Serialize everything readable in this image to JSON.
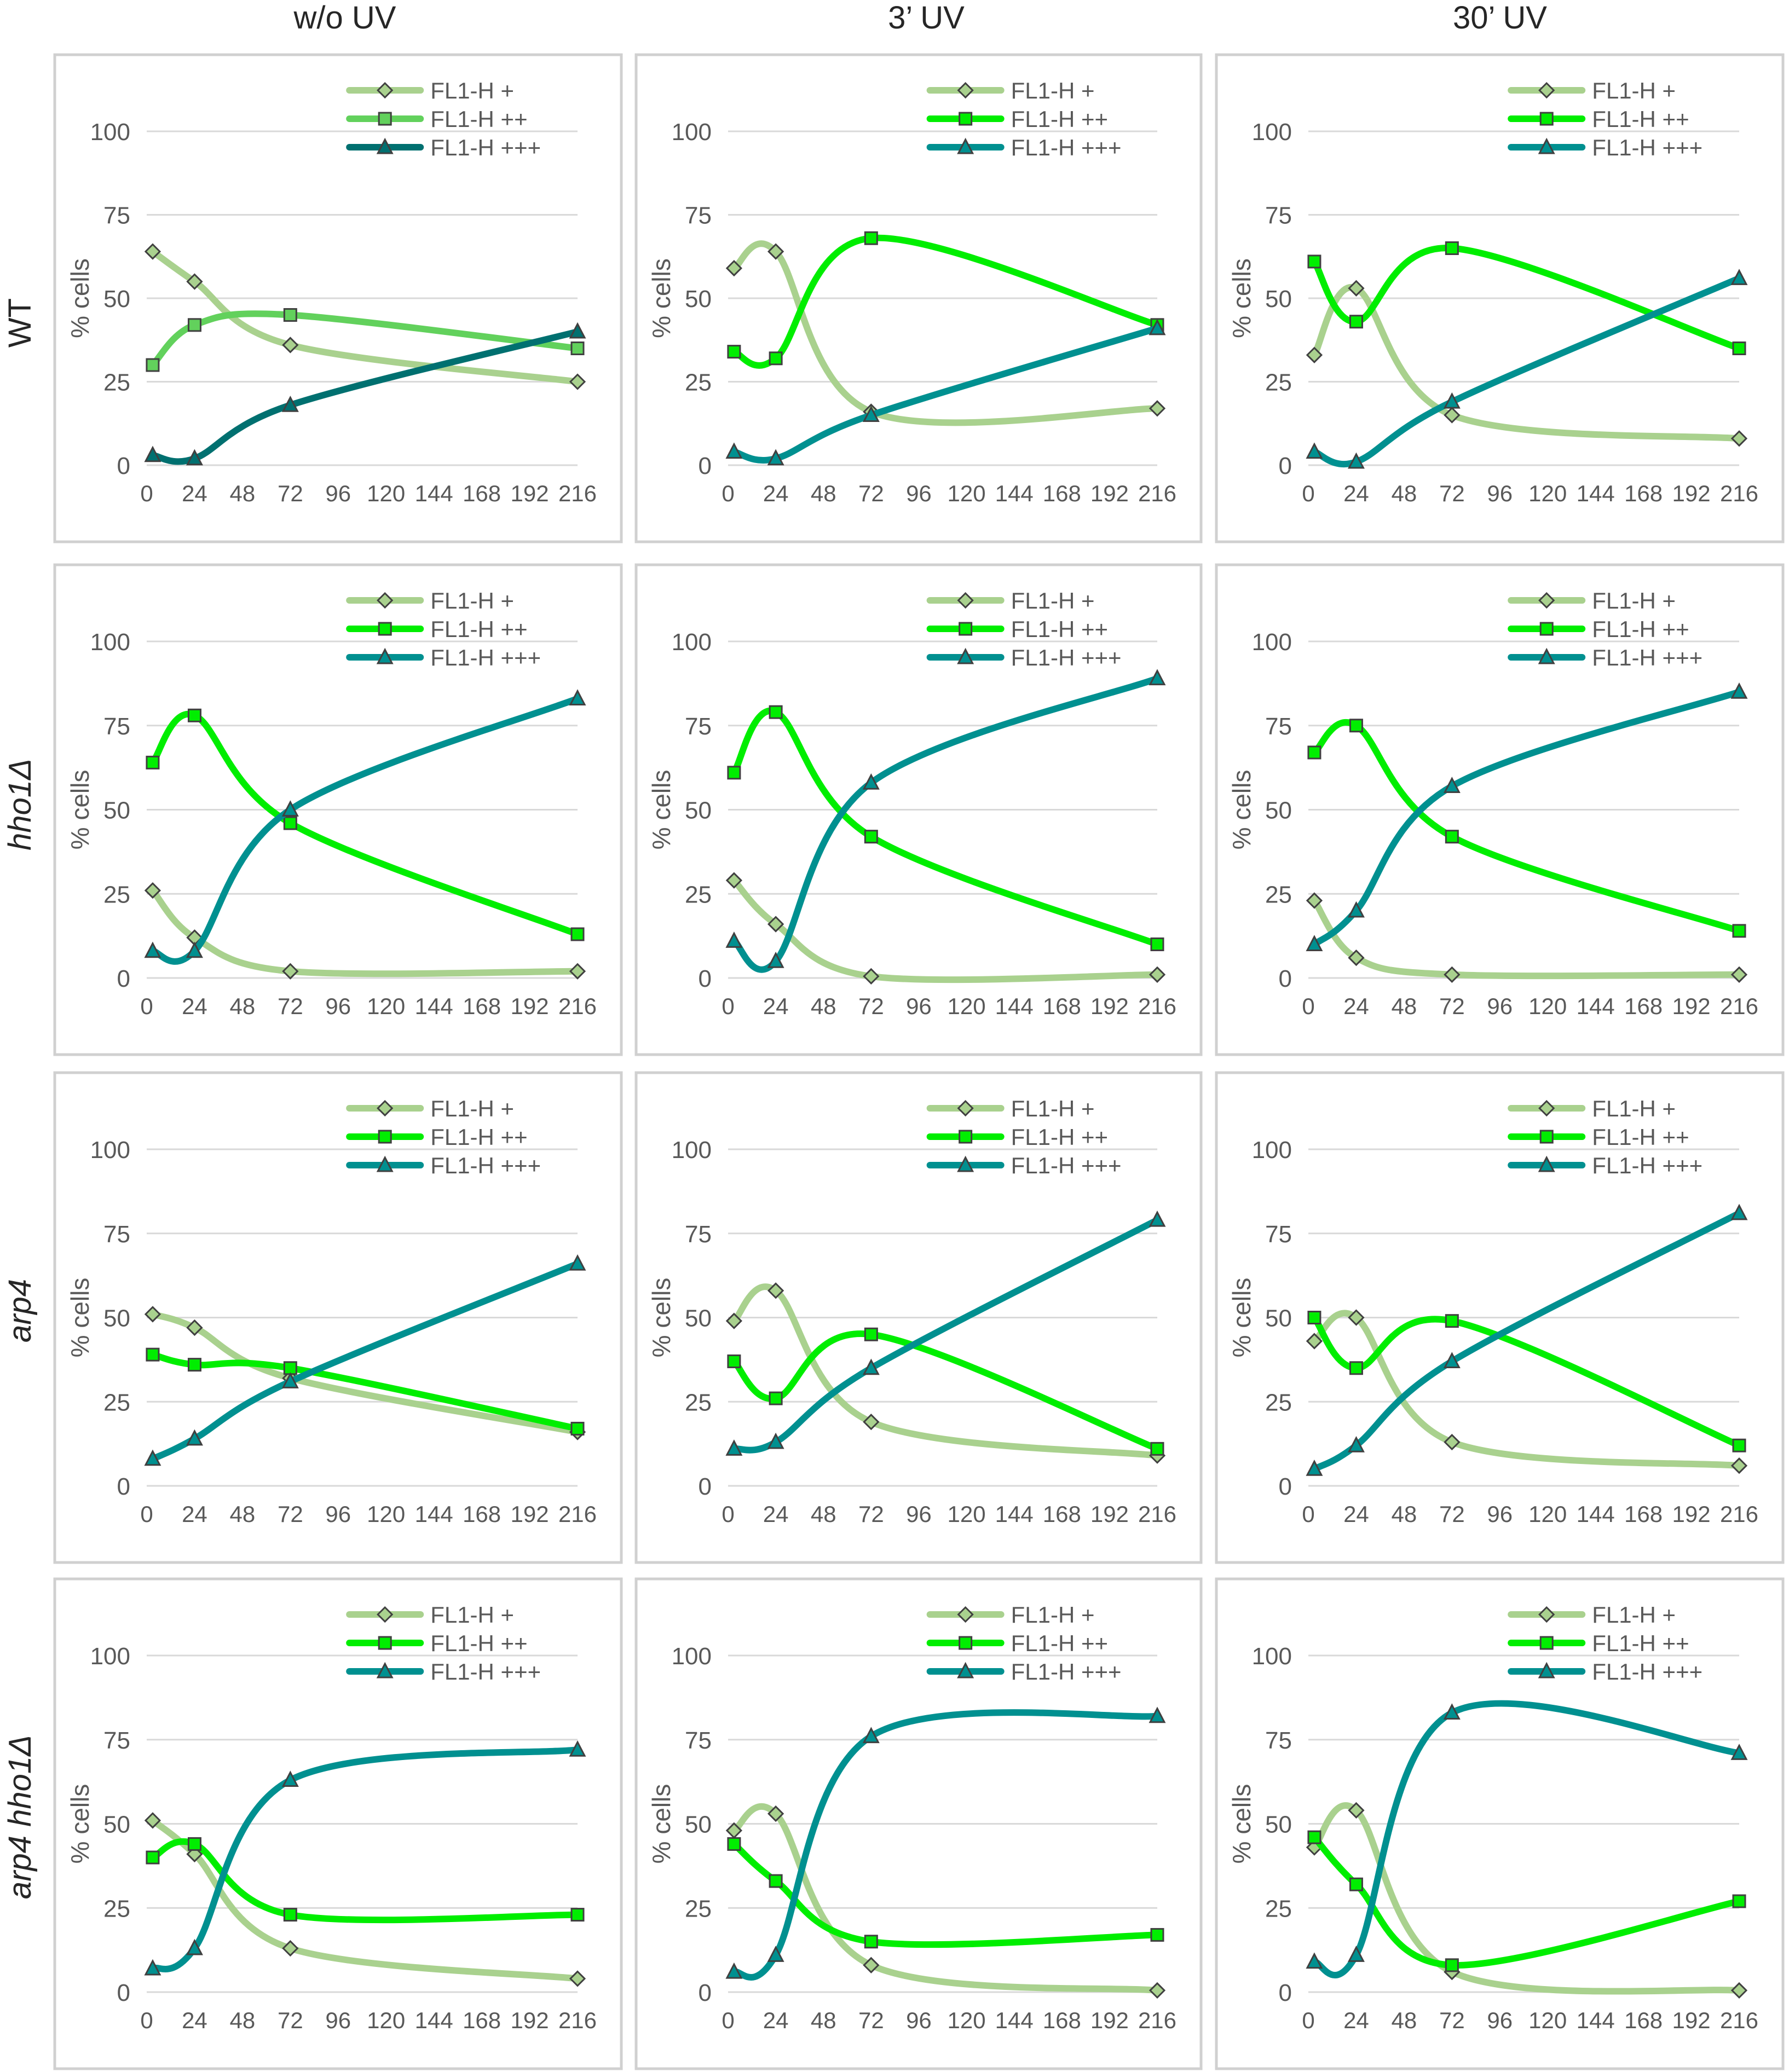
{
  "column_headers": [
    "w/o UV",
    "3’ UV",
    "30’ UV"
  ],
  "row_headers": [
    "WT",
    "hho1Δ",
    "arp4",
    "arp4 hho1Δ"
  ],
  "colors": {
    "FL1-H +": "#a9d18e",
    "FL1-H ++": "#00ee00",
    "FL1-H ++ (w/o UV, WT)": "#62d15c",
    "FL1-H +++ (w/o UV, WT)": "#007070",
    "FL1-H +++": "#009090"
  },
  "chart_data": [
    {
      "type": "line",
      "row": "WT",
      "column": "w/o UV",
      "ylabel": "% cells",
      "xlabel": "",
      "x_ticks": [
        0,
        24,
        48,
        72,
        96,
        120,
        144,
        168,
        192,
        216
      ],
      "y_ticks": [
        0,
        25,
        50,
        75,
        100
      ],
      "xlim": [
        0,
        216
      ],
      "ylim": [
        0,
        100
      ],
      "grid": true,
      "legend": "top-right",
      "series": [
        {
          "name": "FL1-H +",
          "marker": "diamond",
          "x": [
            3,
            24,
            72,
            216
          ],
          "y": [
            64,
            55,
            36,
            25
          ]
        },
        {
          "name": "FL1-H ++",
          "marker": "square",
          "x": [
            3,
            24,
            72,
            216
          ],
          "y": [
            30,
            42,
            45,
            35
          ]
        },
        {
          "name": "FL1-H +++",
          "marker": "triangle",
          "x": [
            3,
            24,
            72,
            216
          ],
          "y": [
            3,
            2,
            18,
            40
          ]
        }
      ]
    },
    {
      "type": "line",
      "row": "WT",
      "column": "3’ UV",
      "ylabel": "% cells",
      "xlabel": "",
      "x_ticks": [
        0,
        24,
        48,
        72,
        96,
        120,
        144,
        168,
        192,
        216
      ],
      "y_ticks": [
        0,
        25,
        50,
        75,
        100
      ],
      "xlim": [
        0,
        216
      ],
      "ylim": [
        0,
        100
      ],
      "grid": true,
      "legend": "top-right",
      "series": [
        {
          "name": "FL1-H +",
          "marker": "diamond",
          "x": [
            3,
            24,
            72,
            216
          ],
          "y": [
            59,
            64,
            16,
            17
          ]
        },
        {
          "name": "FL1-H ++",
          "marker": "square",
          "x": [
            3,
            24,
            72,
            216
          ],
          "y": [
            34,
            32,
            68,
            42
          ]
        },
        {
          "name": "FL1-H +++",
          "marker": "triangle",
          "x": [
            3,
            24,
            72,
            216
          ],
          "y": [
            4,
            2,
            15,
            41
          ]
        }
      ]
    },
    {
      "type": "line",
      "row": "WT",
      "column": "30’ UV",
      "ylabel": "% cells",
      "xlabel": "",
      "x_ticks": [
        0,
        24,
        48,
        72,
        96,
        120,
        144,
        168,
        192,
        216
      ],
      "y_ticks": [
        0,
        25,
        50,
        75,
        100
      ],
      "xlim": [
        0,
        216
      ],
      "ylim": [
        0,
        100
      ],
      "grid": true,
      "legend": "top-right",
      "series": [
        {
          "name": "FL1-H +",
          "marker": "diamond",
          "x": [
            3,
            24,
            72,
            216
          ],
          "y": [
            33,
            53,
            15,
            8
          ]
        },
        {
          "name": "FL1-H ++",
          "marker": "square",
          "x": [
            3,
            24,
            72,
            216
          ],
          "y": [
            61,
            43,
            65,
            35
          ]
        },
        {
          "name": "FL1-H +++",
          "marker": "triangle",
          "x": [
            3,
            24,
            72,
            216
          ],
          "y": [
            4,
            1,
            19,
            56
          ]
        }
      ]
    },
    {
      "type": "line",
      "row": "hho1Δ",
      "column": "w/o UV",
      "ylabel": "% cells",
      "xlabel": "",
      "x_ticks": [
        0,
        24,
        48,
        72,
        96,
        120,
        144,
        168,
        192,
        216
      ],
      "y_ticks": [
        0,
        25,
        50,
        75,
        100
      ],
      "xlim": [
        0,
        216
      ],
      "ylim": [
        0,
        100
      ],
      "grid": true,
      "legend": "top-right",
      "series": [
        {
          "name": "FL1-H +",
          "marker": "diamond",
          "x": [
            3,
            24,
            72,
            216
          ],
          "y": [
            26,
            12,
            2,
            2
          ]
        },
        {
          "name": "FL1-H ++",
          "marker": "square",
          "x": [
            3,
            24,
            72,
            216
          ],
          "y": [
            64,
            78,
            46,
            13
          ]
        },
        {
          "name": "FL1-H +++",
          "marker": "triangle",
          "x": [
            3,
            24,
            72,
            216
          ],
          "y": [
            8,
            8,
            50,
            83
          ]
        }
      ]
    },
    {
      "type": "line",
      "row": "hho1Δ",
      "column": "3’ UV",
      "ylabel": "% cells",
      "xlabel": "",
      "x_ticks": [
        0,
        24,
        48,
        72,
        96,
        120,
        144,
        168,
        192,
        216
      ],
      "y_ticks": [
        0,
        25,
        50,
        75,
        100
      ],
      "xlim": [
        0,
        216
      ],
      "ylim": [
        0,
        100
      ],
      "grid": true,
      "legend": "top-right",
      "series": [
        {
          "name": "FL1-H +",
          "marker": "diamond",
          "x": [
            3,
            24,
            72,
            216
          ],
          "y": [
            29,
            16,
            0.5,
            1
          ]
        },
        {
          "name": "FL1-H ++",
          "marker": "square",
          "x": [
            3,
            24,
            72,
            216
          ],
          "y": [
            61,
            79,
            42,
            10
          ]
        },
        {
          "name": "FL1-H +++",
          "marker": "triangle",
          "x": [
            3,
            24,
            72,
            216
          ],
          "y": [
            11,
            5,
            58,
            89
          ]
        }
      ]
    },
    {
      "type": "line",
      "row": "hho1Δ",
      "column": "30’ UV",
      "ylabel": "% cells",
      "xlabel": "",
      "x_ticks": [
        0,
        24,
        48,
        72,
        96,
        120,
        144,
        168,
        192,
        216
      ],
      "y_ticks": [
        0,
        25,
        50,
        75,
        100
      ],
      "xlim": [
        0,
        216
      ],
      "ylim": [
        0,
        100
      ],
      "grid": true,
      "legend": "top-right",
      "series": [
        {
          "name": "FL1-H +",
          "marker": "diamond",
          "x": [
            3,
            24,
            72,
            216
          ],
          "y": [
            23,
            6,
            1,
            1
          ]
        },
        {
          "name": "FL1-H ++",
          "marker": "square",
          "x": [
            3,
            24,
            72,
            216
          ],
          "y": [
            67,
            75,
            42,
            14
          ]
        },
        {
          "name": "FL1-H +++",
          "marker": "triangle",
          "x": [
            3,
            24,
            72,
            216
          ],
          "y": [
            10,
            20,
            57,
            85
          ]
        }
      ]
    },
    {
      "type": "line",
      "row": "arp4",
      "column": "w/o UV",
      "ylabel": "% cells",
      "xlabel": "",
      "x_ticks": [
        0,
        24,
        48,
        72,
        96,
        120,
        144,
        168,
        192,
        216
      ],
      "y_ticks": [
        0,
        25,
        50,
        75,
        100
      ],
      "xlim": [
        0,
        216
      ],
      "ylim": [
        0,
        100
      ],
      "grid": true,
      "legend": "top-right",
      "series": [
        {
          "name": "FL1-H +",
          "marker": "diamond",
          "x": [
            3,
            24,
            72,
            216
          ],
          "y": [
            51,
            47,
            32,
            16
          ]
        },
        {
          "name": "FL1-H ++",
          "marker": "square",
          "x": [
            3,
            24,
            72,
            216
          ],
          "y": [
            39,
            36,
            35,
            17
          ]
        },
        {
          "name": "FL1-H +++",
          "marker": "triangle",
          "x": [
            3,
            24,
            72,
            216
          ],
          "y": [
            8,
            14,
            31,
            66
          ]
        }
      ]
    },
    {
      "type": "line",
      "row": "arp4",
      "column": "3’ UV",
      "ylabel": "% cells",
      "xlabel": "",
      "x_ticks": [
        0,
        24,
        48,
        72,
        96,
        120,
        144,
        168,
        192,
        216
      ],
      "y_ticks": [
        0,
        25,
        50,
        75,
        100
      ],
      "xlim": [
        0,
        216
      ],
      "ylim": [
        0,
        100
      ],
      "grid": true,
      "legend": "top-right",
      "series": [
        {
          "name": "FL1-H +",
          "marker": "diamond",
          "x": [
            3,
            24,
            72,
            216
          ],
          "y": [
            49,
            58,
            19,
            9
          ]
        },
        {
          "name": "FL1-H ++",
          "marker": "square",
          "x": [
            3,
            24,
            72,
            216
          ],
          "y": [
            37,
            26,
            45,
            11
          ]
        },
        {
          "name": "FL1-H +++",
          "marker": "triangle",
          "x": [
            3,
            24,
            72,
            216
          ],
          "y": [
            11,
            13,
            35,
            79
          ]
        }
      ]
    },
    {
      "type": "line",
      "row": "arp4",
      "column": "30’ UV",
      "ylabel": "% cells",
      "xlabel": "",
      "x_ticks": [
        0,
        24,
        48,
        72,
        96,
        120,
        144,
        168,
        192,
        216
      ],
      "y_ticks": [
        0,
        25,
        50,
        75,
        100
      ],
      "xlim": [
        0,
        216
      ],
      "ylim": [
        0,
        100
      ],
      "grid": true,
      "legend": "top-right",
      "series": [
        {
          "name": "FL1-H +",
          "marker": "diamond",
          "x": [
            3,
            24,
            72,
            216
          ],
          "y": [
            43,
            50,
            13,
            6
          ]
        },
        {
          "name": "FL1-H ++",
          "marker": "square",
          "x": [
            3,
            24,
            72,
            216
          ],
          "y": [
            50,
            35,
            49,
            12
          ]
        },
        {
          "name": "FL1-H +++",
          "marker": "triangle",
          "x": [
            3,
            24,
            72,
            216
          ],
          "y": [
            5,
            12,
            37,
            81
          ]
        }
      ]
    },
    {
      "type": "line",
      "row": "arp4 hho1Δ",
      "column": "w/o UV",
      "ylabel": "% cells",
      "xlabel": "",
      "x_ticks": [
        0,
        24,
        48,
        72,
        96,
        120,
        144,
        168,
        192,
        216
      ],
      "y_ticks": [
        0,
        25,
        50,
        75,
        100
      ],
      "xlim": [
        0,
        216
      ],
      "ylim": [
        0,
        100
      ],
      "grid": true,
      "legend": "top-right",
      "series": [
        {
          "name": "FL1-H +",
          "marker": "diamond",
          "x": [
            3,
            24,
            72,
            216
          ],
          "y": [
            51,
            41,
            13,
            4
          ]
        },
        {
          "name": "FL1-H ++",
          "marker": "square",
          "x": [
            3,
            24,
            72,
            216
          ],
          "y": [
            40,
            44,
            23,
            23
          ]
        },
        {
          "name": "FL1-H +++",
          "marker": "triangle",
          "x": [
            3,
            24,
            72,
            216
          ],
          "y": [
            7,
            13,
            63,
            72
          ]
        }
      ]
    },
    {
      "type": "line",
      "row": "arp4 hho1Δ",
      "column": "3’ UV",
      "ylabel": "% cells",
      "xlabel": "",
      "x_ticks": [
        0,
        24,
        48,
        72,
        96,
        120,
        144,
        168,
        192,
        216
      ],
      "y_ticks": [
        0,
        25,
        50,
        75,
        100
      ],
      "xlim": [
        0,
        216
      ],
      "ylim": [
        0,
        100
      ],
      "grid": true,
      "legend": "top-right",
      "series": [
        {
          "name": "FL1-H +",
          "marker": "diamond",
          "x": [
            3,
            24,
            72,
            216
          ],
          "y": [
            48,
            53,
            8,
            0.5
          ]
        },
        {
          "name": "FL1-H ++",
          "marker": "square",
          "x": [
            3,
            24,
            72,
            216
          ],
          "y": [
            44,
            33,
            15,
            17
          ]
        },
        {
          "name": "FL1-H +++",
          "marker": "triangle",
          "x": [
            3,
            24,
            72,
            216
          ],
          "y": [
            6,
            11,
            76,
            82
          ]
        }
      ]
    },
    {
      "type": "line",
      "row": "arp4 hho1Δ",
      "column": "30’ UV",
      "ylabel": "% cells",
      "xlabel": "",
      "x_ticks": [
        0,
        24,
        48,
        72,
        96,
        120,
        144,
        168,
        192,
        216
      ],
      "y_ticks": [
        0,
        25,
        50,
        75,
        100
      ],
      "xlim": [
        0,
        216
      ],
      "ylim": [
        0,
        100
      ],
      "grid": true,
      "legend": "top-right",
      "series": [
        {
          "name": "FL1-H +",
          "marker": "diamond",
          "x": [
            3,
            24,
            72,
            216
          ],
          "y": [
            43,
            54,
            6,
            0.5
          ]
        },
        {
          "name": "FL1-H ++",
          "marker": "square",
          "x": [
            3,
            24,
            72,
            216
          ],
          "y": [
            46,
            32,
            8,
            27
          ]
        },
        {
          "name": "FL1-H +++",
          "marker": "triangle",
          "x": [
            3,
            24,
            72,
            216
          ],
          "y": [
            9,
            11,
            83,
            71
          ]
        }
      ]
    }
  ]
}
